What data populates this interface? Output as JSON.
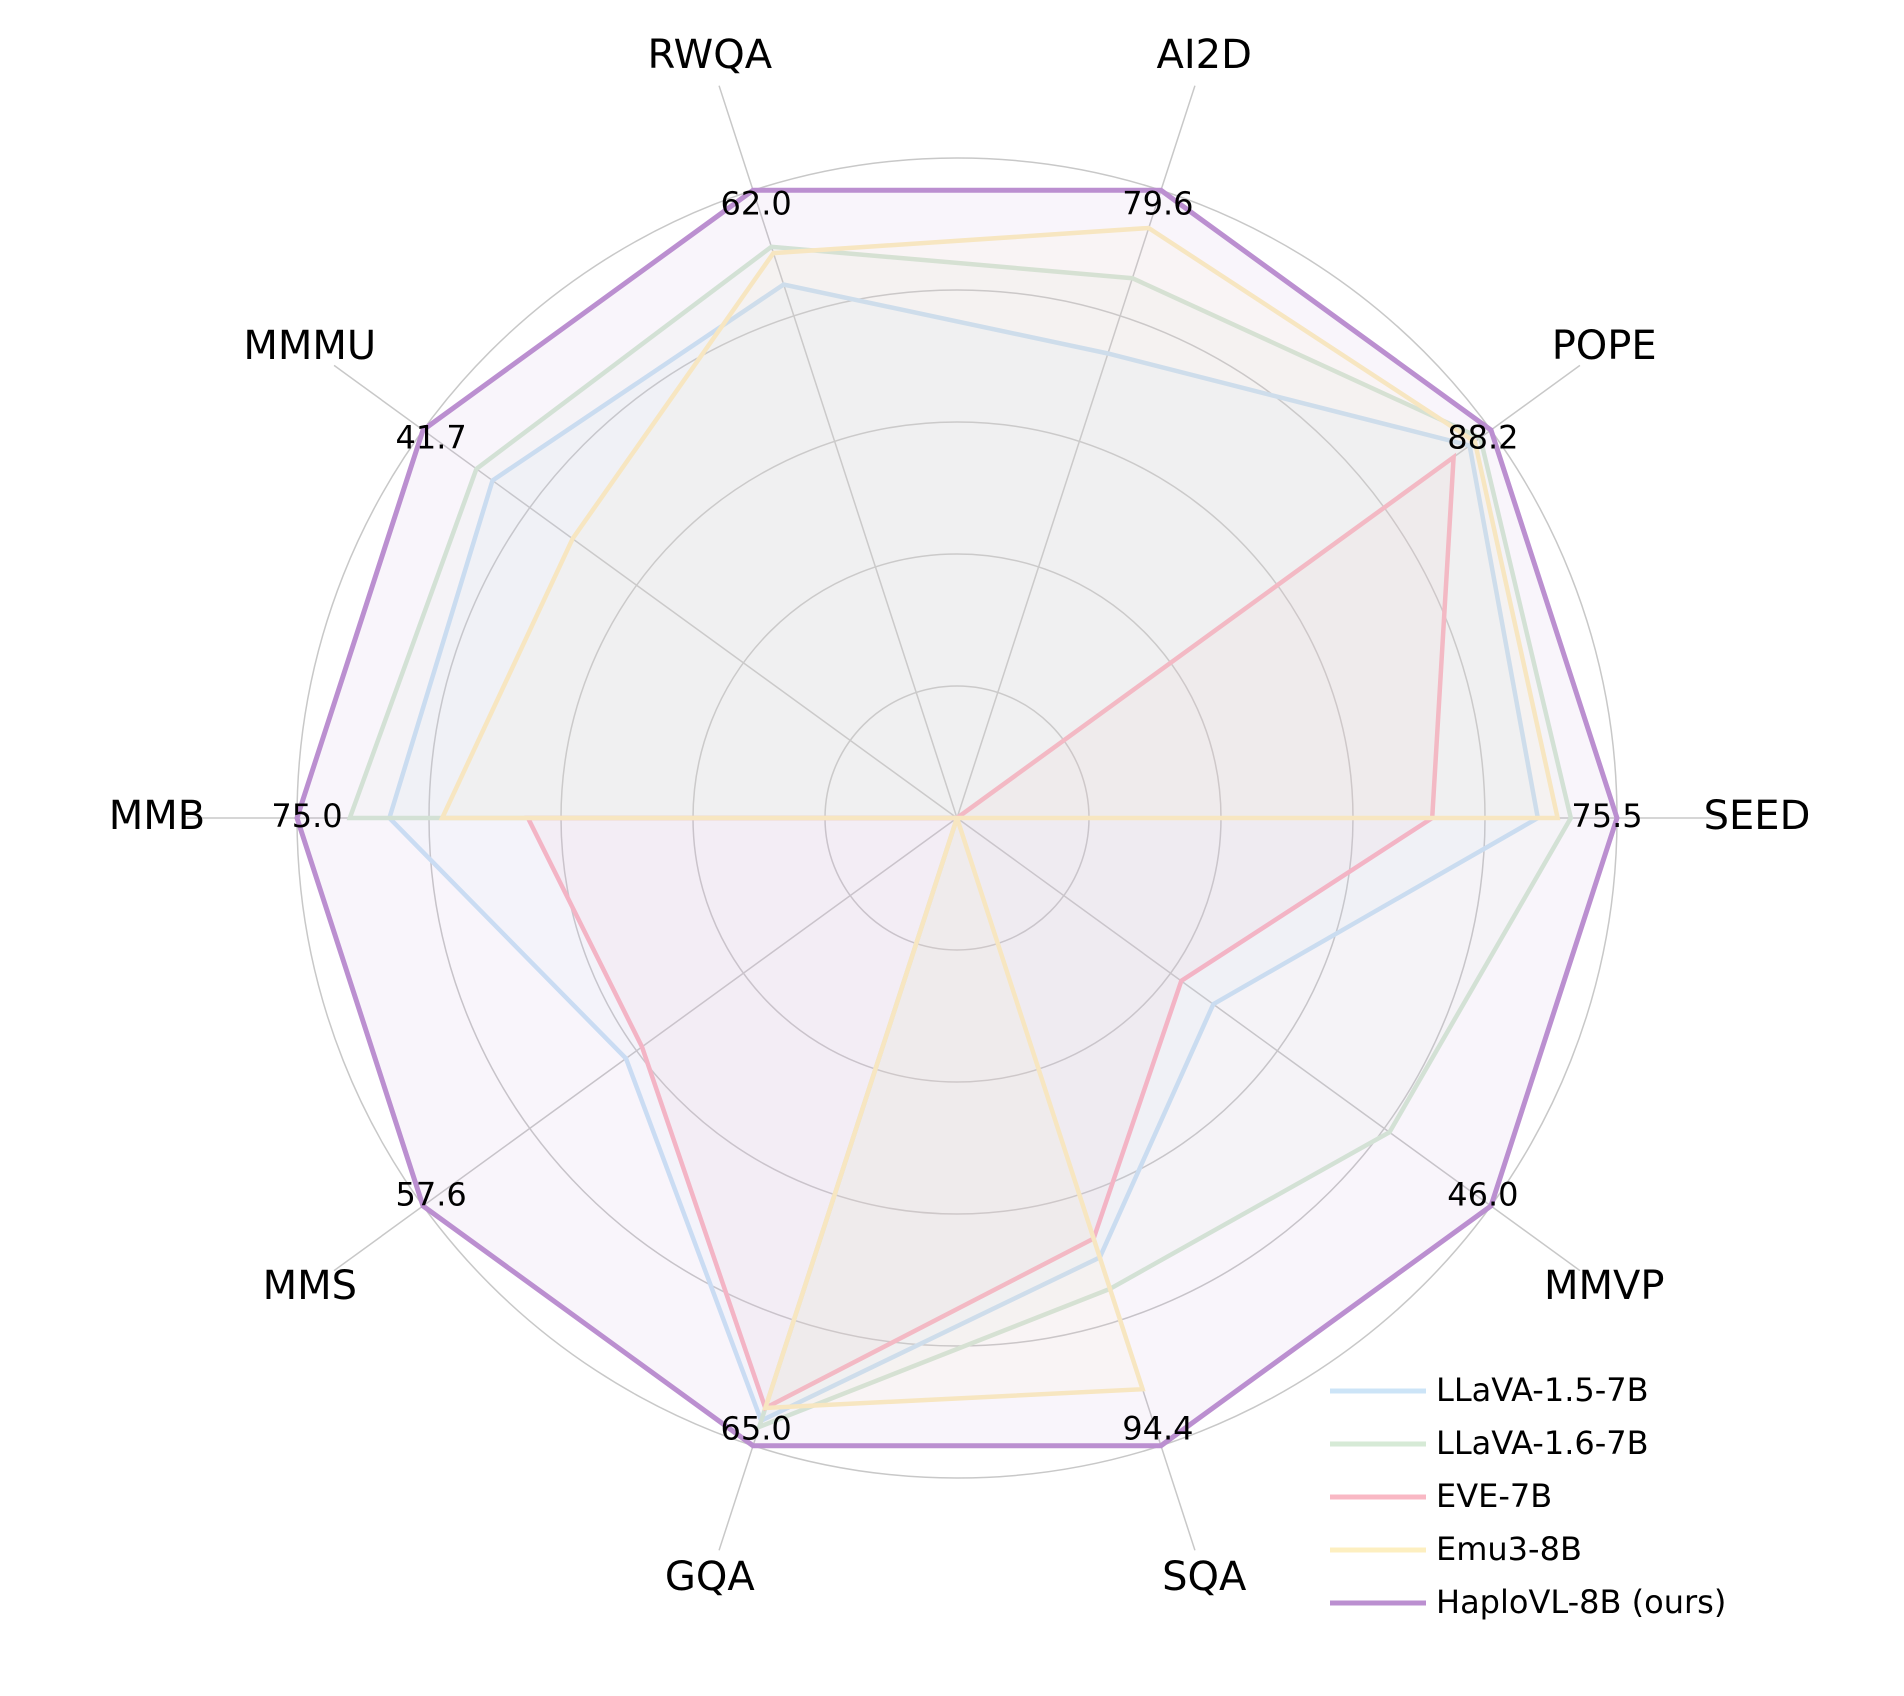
{
  "chart_data": {
    "type": "radar",
    "title": "",
    "axes": [
      "SEED",
      "POPE",
      "AI2D",
      "RWQA",
      "MMMU",
      "MMB",
      "MMS",
      "GQA",
      "SQA",
      "MMVP"
    ],
    "max_labels": [
      "75.5",
      "88.2",
      "79.6",
      "62.0",
      "41.7",
      "75.0",
      "57.6",
      "65.0",
      "94.4",
      "46.0"
    ],
    "grid": true,
    "legend_position": "bottom-right",
    "series": [
      {
        "name": "LLaVA-1.5-7B",
        "color": "#cce4f7",
        "values": [
          0.88,
          0.96,
          0.74,
          0.85,
          0.87,
          0.86,
          0.62,
          0.96,
          0.7,
          0.48
        ]
      },
      {
        "name": "LLaVA-1.6-7B",
        "color": "#d6ead6",
        "values": [
          0.93,
          0.98,
          0.86,
          0.91,
          0.9,
          0.92,
          0.0,
          0.97,
          0.75,
          0.81
        ]
      },
      {
        "name": "EVE-7B",
        "color": "#f9b8c4",
        "values": [
          0.72,
          0.93,
          0.0,
          0.0,
          0.0,
          0.65,
          0.59,
          0.94,
          0.67,
          0.42
        ]
      },
      {
        "name": "Emu3-8B",
        "color": "#fdefc0",
        "values": [
          0.91,
          0.97,
          0.94,
          0.9,
          0.72,
          0.78,
          0.0,
          0.94,
          0.91,
          0.0
        ]
      },
      {
        "name": "HaploVL-8B (ours)",
        "color": "#bb8fd0",
        "values": [
          1,
          1,
          1,
          1,
          1,
          1,
          1,
          1,
          1,
          1
        ]
      }
    ]
  }
}
